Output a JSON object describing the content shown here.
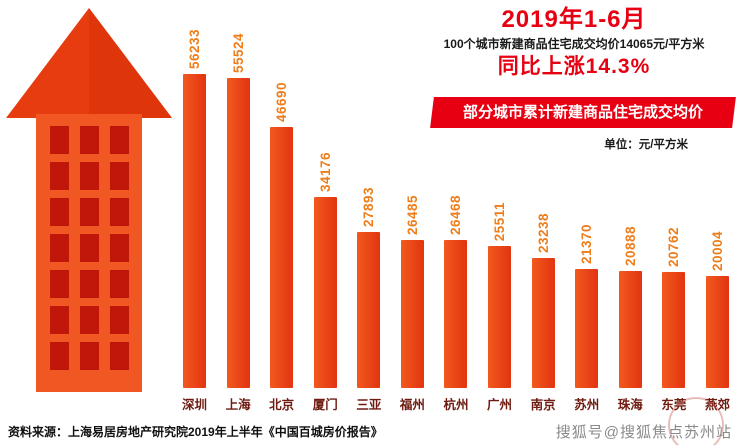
{
  "header": {
    "title": "2019年1-6月",
    "subtitle": "100个城市新建商品住宅成交均价14065元/平方米",
    "growth": "同比上涨14.3%"
  },
  "unit_label": "单位：元/平方米",
  "chart_data": {
    "type": "bar",
    "title": "部分城市累计新建商品住宅成交均价",
    "unit": "元/平方米",
    "categories": [
      "深圳",
      "上海",
      "北京",
      "厦门",
      "三亚",
      "福州",
      "杭州",
      "广州",
      "南京",
      "苏州",
      "珠海",
      "东莞",
      "燕郊"
    ],
    "values": [
      56233,
      55524,
      46690,
      34176,
      27893,
      26485,
      26468,
      25511,
      23238,
      21370,
      20888,
      20762,
      20004
    ],
    "ylim": [
      0,
      60000
    ],
    "axes_hidden": true,
    "grid": false,
    "legend": "none",
    "value_labels_rotated": true
  },
  "source": "资料来源：上海易居房地产研究院2019年上半年《中国百城房价报告》",
  "watermark": "搜狐号@搜狐焦点苏州站",
  "colors": {
    "title_red": "#e60012",
    "bar_light": "#f2591e",
    "bar_dark": "#e23410",
    "value_label": "#ef7d1a",
    "city_label": "#6d1a10",
    "building_arrow": "#e63c10",
    "building_body": "#f15722",
    "building_window": "#c1170b"
  }
}
